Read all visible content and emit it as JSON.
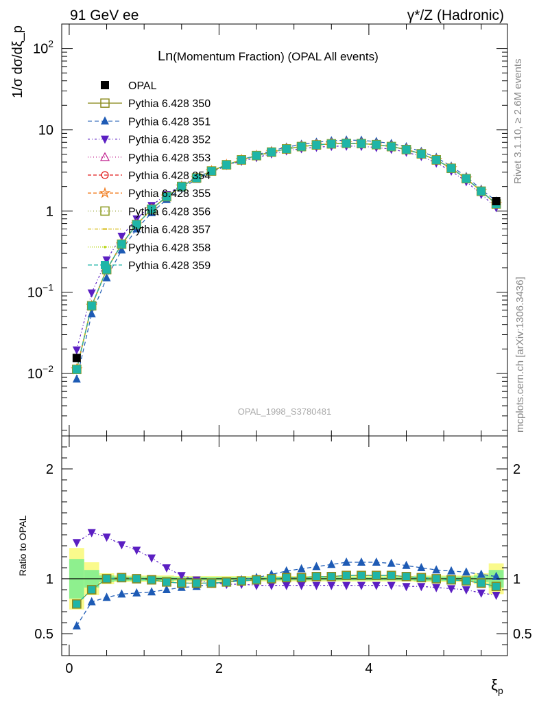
{
  "header": {
    "left": "91 GeV ee",
    "right": "γ*/Z (Hadronic)"
  },
  "side_labels": {
    "rivet": "Rivet 3.1.10, ≥ 2.6M events",
    "mcplots": "mcplots.cern.ch [arXiv:1306.3436]"
  },
  "watermark": "OPAL_1998_S3780481",
  "chart_data": [
    {
      "type": "scatter",
      "panel": "main",
      "title": "Ln(Momentum Fraction) (OPAL All events)",
      "title_prefix": "Ln",
      "title_rest": "(Momentum Fraction) (OPAL All events)",
      "ylabel": "1/σ dσ/dξ_p",
      "y_scale": "log",
      "xlim": [
        -0.1,
        5.85
      ],
      "ylim": [
        0.0017,
        200
      ],
      "y_ticks": [
        {
          "value": 0.01,
          "base": "10",
          "exp": "−2"
        },
        {
          "value": 0.1,
          "base": "10",
          "exp": "−1"
        },
        {
          "value": 1,
          "base": "1",
          "exp": ""
        },
        {
          "value": 10,
          "base": "10",
          "exp": ""
        },
        {
          "value": 100,
          "base": "10",
          "exp": "2"
        }
      ],
      "x": [
        0.1,
        0.3,
        0.5,
        0.7,
        0.9,
        1.1,
        1.3,
        1.5,
        1.7,
        1.9,
        2.1,
        2.3,
        2.5,
        2.7,
        2.9,
        3.1,
        3.3,
        3.5,
        3.7,
        3.9,
        4.1,
        4.3,
        4.5,
        4.7,
        4.9,
        5.1,
        5.3,
        5.5,
        5.7
      ],
      "data": {
        "name": "OPAL",
        "x": [
          0.1,
          5.7
        ],
        "values": [
          0.0155,
          1.32
        ]
      },
      "series": [
        {
          "name": "Pythia 6.428 350",
          "color": "#8c8c1f",
          "marker": "square-open",
          "dash": "solid",
          "values": [
            0.0112,
            0.068,
            0.19,
            0.39,
            0.68,
            1.05,
            1.5,
            2.0,
            2.55,
            3.1,
            3.7,
            4.25,
            4.8,
            5.3,
            5.8,
            6.2,
            6.5,
            6.7,
            6.8,
            6.75,
            6.55,
            6.2,
            5.7,
            5.05,
            4.25,
            3.35,
            2.5,
            1.75,
            1.22
          ]
        },
        {
          "name": "Pythia 6.428 351",
          "color": "#1e5bb5",
          "marker": "triangle-up",
          "dash": "6,4",
          "values": [
            0.0085,
            0.054,
            0.15,
            0.33,
            0.6,
            0.95,
            1.38,
            1.9,
            2.45,
            3.0,
            3.62,
            4.25,
            4.9,
            5.5,
            6.1,
            6.6,
            7.0,
            7.3,
            7.45,
            7.4,
            7.15,
            6.75,
            6.15,
            5.4,
            4.55,
            3.55,
            2.65,
            1.85,
            1.32
          ]
        },
        {
          "name": "Pythia 6.428 352",
          "color": "#5b1fc2",
          "marker": "triangle-down",
          "dash": "3,3,1,3",
          "values": [
            0.0195,
            0.098,
            0.25,
            0.49,
            0.8,
            1.17,
            1.6,
            2.07,
            2.6,
            3.1,
            3.65,
            4.1,
            4.55,
            5.05,
            5.5,
            5.85,
            6.1,
            6.25,
            6.3,
            6.25,
            6.05,
            5.75,
            5.3,
            4.7,
            3.9,
            3.1,
            2.3,
            1.6,
            1.1
          ]
        },
        {
          "name": "Pythia 6.428 353",
          "color": "#c0208f",
          "marker": "triangle-open",
          "dash": "1,3",
          "values": [
            0.0113,
            0.068,
            0.19,
            0.39,
            0.68,
            1.05,
            1.5,
            2.0,
            2.55,
            3.1,
            3.7,
            4.25,
            4.8,
            5.3,
            5.8,
            6.2,
            6.5,
            6.7,
            6.8,
            6.75,
            6.55,
            6.2,
            5.7,
            5.05,
            4.25,
            3.35,
            2.5,
            1.75,
            1.22
          ]
        },
        {
          "name": "Pythia 6.428 354",
          "color": "#e01818",
          "marker": "circle-open",
          "dash": "5,3",
          "values": [
            0.0112,
            0.068,
            0.19,
            0.39,
            0.68,
            1.05,
            1.5,
            2.0,
            2.55,
            3.1,
            3.7,
            4.25,
            4.8,
            5.3,
            5.8,
            6.2,
            6.5,
            6.7,
            6.8,
            6.75,
            6.55,
            6.2,
            5.7,
            5.05,
            4.25,
            3.35,
            2.5,
            1.75,
            1.22
          ]
        },
        {
          "name": "Pythia 6.428 355",
          "color": "#f07818",
          "marker": "star-open",
          "dash": "5,3",
          "values": [
            0.0112,
            0.068,
            0.19,
            0.39,
            0.68,
            1.05,
            1.5,
            2.0,
            2.55,
            3.1,
            3.7,
            4.25,
            4.8,
            5.3,
            5.8,
            6.2,
            6.5,
            6.7,
            6.8,
            6.75,
            6.55,
            6.2,
            5.7,
            5.05,
            4.25,
            3.35,
            2.5,
            1.75,
            1.22
          ]
        },
        {
          "name": "Pythia 6.428 356",
          "color": "#8c9a1f",
          "marker": "square-open",
          "dash": "1,3",
          "values": [
            0.0112,
            0.068,
            0.19,
            0.39,
            0.68,
            1.05,
            1.5,
            2.0,
            2.55,
            3.1,
            3.7,
            4.25,
            4.8,
            5.3,
            5.8,
            6.2,
            6.5,
            6.7,
            6.8,
            6.75,
            6.55,
            6.2,
            5.7,
            5.05,
            4.25,
            3.35,
            2.5,
            1.75,
            1.22
          ]
        },
        {
          "name": "Pythia 6.428 357",
          "color": "#d4b80c",
          "marker": "dash-point",
          "dash": "5,2,1,2",
          "values": [
            0.0112,
            0.068,
            0.19,
            0.39,
            0.68,
            1.05,
            1.5,
            2.0,
            2.55,
            3.1,
            3.7,
            4.25,
            4.8,
            5.3,
            5.8,
            6.2,
            6.5,
            6.7,
            6.8,
            6.75,
            6.55,
            6.2,
            5.7,
            5.05,
            4.25,
            3.35,
            2.5,
            1.75,
            1.22
          ]
        },
        {
          "name": "Pythia 6.428 358",
          "color": "#b5d40c",
          "marker": "dot",
          "dash": "1,2",
          "values": [
            0.0112,
            0.068,
            0.19,
            0.39,
            0.68,
            1.05,
            1.5,
            2.0,
            2.55,
            3.1,
            3.7,
            4.25,
            4.8,
            5.3,
            5.8,
            6.2,
            6.5,
            6.7,
            6.8,
            6.75,
            6.55,
            6.2,
            5.7,
            5.05,
            4.25,
            3.35,
            2.5,
            1.75,
            1.22
          ]
        },
        {
          "name": "Pythia 6.428 359",
          "color": "#1fb5a8",
          "marker": "square",
          "dash": "6,3",
          "values": [
            0.0112,
            0.068,
            0.19,
            0.39,
            0.68,
            1.05,
            1.5,
            2.0,
            2.55,
            3.1,
            3.7,
            4.25,
            4.8,
            5.3,
            5.8,
            6.2,
            6.5,
            6.7,
            6.8,
            6.75,
            6.55,
            6.2,
            5.7,
            5.05,
            4.25,
            3.35,
            2.5,
            1.75,
            1.22
          ]
        }
      ]
    },
    {
      "type": "line",
      "panel": "ratio",
      "ylabel": "Ratio to OPAL",
      "xlabel": "ξ_p",
      "ylim": [
        0.3,
        2.3
      ],
      "xlim": [
        -0.1,
        5.85
      ],
      "y_ticks": [
        0.5,
        1,
        2
      ],
      "y_tick_labels": [
        "0.5",
        "1",
        "2"
      ],
      "x_ticks": [
        0,
        2,
        4
      ],
      "x_tick_labels": [
        "0",
        "2",
        "4"
      ],
      "band_edges": [
        0,
        0.2,
        0.4,
        0.6,
        0.8,
        1.0,
        1.2,
        1.4,
        1.6,
        1.8,
        2.0,
        2.2,
        2.4,
        2.6,
        2.8,
        3.0,
        3.2,
        3.4,
        3.6,
        3.8,
        4.0,
        4.2,
        4.4,
        4.6,
        4.8,
        5.0,
        5.2,
        5.4,
        5.6,
        5.8
      ],
      "bands": {
        "stat_color": "#8ef08e",
        "total_color": "#fafa8c",
        "stat_half": [
          0.18,
          0.08,
          0.03,
          0.02,
          0.02,
          0.02,
          0.02,
          0.015,
          0.015,
          0.015,
          0.015,
          0.015,
          0.015,
          0.015,
          0.015,
          0.015,
          0.015,
          0.015,
          0.015,
          0.015,
          0.015,
          0.015,
          0.015,
          0.02,
          0.02,
          0.02,
          0.02,
          0.03,
          0.08
        ],
        "total_half": [
          0.28,
          0.15,
          0.05,
          0.03,
          0.03,
          0.03,
          0.03,
          0.025,
          0.025,
          0.025,
          0.025,
          0.025,
          0.025,
          0.025,
          0.025,
          0.025,
          0.025,
          0.025,
          0.025,
          0.025,
          0.025,
          0.025,
          0.025,
          0.03,
          0.03,
          0.03,
          0.03,
          0.05,
          0.14
        ]
      },
      "series": [
        {
          "name": "Pythia 6.428 350",
          "values": [
            0.77,
            0.9,
            1.0,
            1.01,
            1.0,
            0.99,
            0.97,
            0.96,
            0.96,
            0.96,
            0.97,
            0.98,
            0.99,
            1.0,
            1.01,
            1.01,
            1.02,
            1.02,
            1.03,
            1.03,
            1.03,
            1.03,
            1.02,
            1.01,
            1.0,
            0.99,
            0.98,
            0.96,
            0.93
          ]
        },
        {
          "name": "Pythia 6.428 351",
          "values": [
            0.57,
            0.79,
            0.83,
            0.86,
            0.87,
            0.88,
            0.9,
            0.92,
            0.93,
            0.95,
            0.97,
            0.99,
            1.01,
            1.04,
            1.07,
            1.09,
            1.11,
            1.13,
            1.15,
            1.15,
            1.15,
            1.14,
            1.12,
            1.1,
            1.08,
            1.07,
            1.06,
            1.04,
            1.02
          ]
        },
        {
          "name": "Pythia 6.428 352",
          "values": [
            1.33,
            1.42,
            1.38,
            1.31,
            1.26,
            1.19,
            1.1,
            1.03,
            0.99,
            0.96,
            0.95,
            0.95,
            0.94,
            0.94,
            0.94,
            0.94,
            0.94,
            0.94,
            0.94,
            0.94,
            0.94,
            0.94,
            0.93,
            0.93,
            0.92,
            0.91,
            0.9,
            0.87,
            0.85
          ]
        },
        {
          "name": "Pythia 6.428 359",
          "values": [
            0.77,
            0.9,
            1.0,
            1.01,
            1.0,
            0.99,
            0.97,
            0.96,
            0.96,
            0.96,
            0.97,
            0.98,
            0.99,
            1.0,
            1.01,
            1.01,
            1.02,
            1.02,
            1.03,
            1.03,
            1.03,
            1.03,
            1.02,
            1.01,
            1.0,
            0.99,
            0.98,
            0.96,
            0.93
          ]
        }
      ]
    }
  ]
}
